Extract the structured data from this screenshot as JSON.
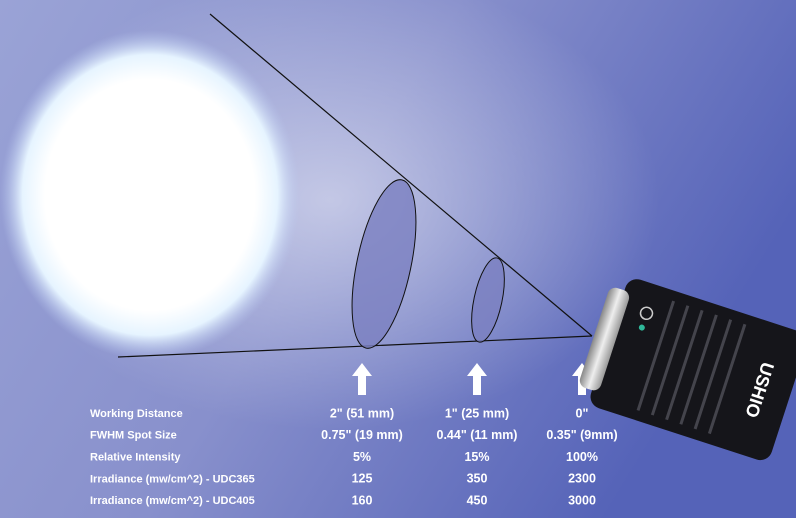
{
  "table": {
    "rows": [
      {
        "label": "Working Distance",
        "cells": [
          "2\" (51 mm)",
          "1\" (25 mm)",
          "0\""
        ]
      },
      {
        "label": "FWHM Spot Size",
        "cells": [
          "0.75\" (19 mm)",
          "0.44\" (11 mm)",
          "0.35\" (9mm)"
        ]
      },
      {
        "label": "Relative Intensity",
        "cells": [
          "5%",
          "15%",
          "100%"
        ]
      },
      {
        "label": "Irradiance (mw/cm^2) - UDC365",
        "cells": [
          "125",
          "350",
          "2300"
        ]
      },
      {
        "label": "Irradiance (mw/cm^2) - UDC405",
        "cells": [
          "160",
          "450",
          "3000"
        ]
      }
    ]
  },
  "device": {
    "brand": "USHIO"
  }
}
